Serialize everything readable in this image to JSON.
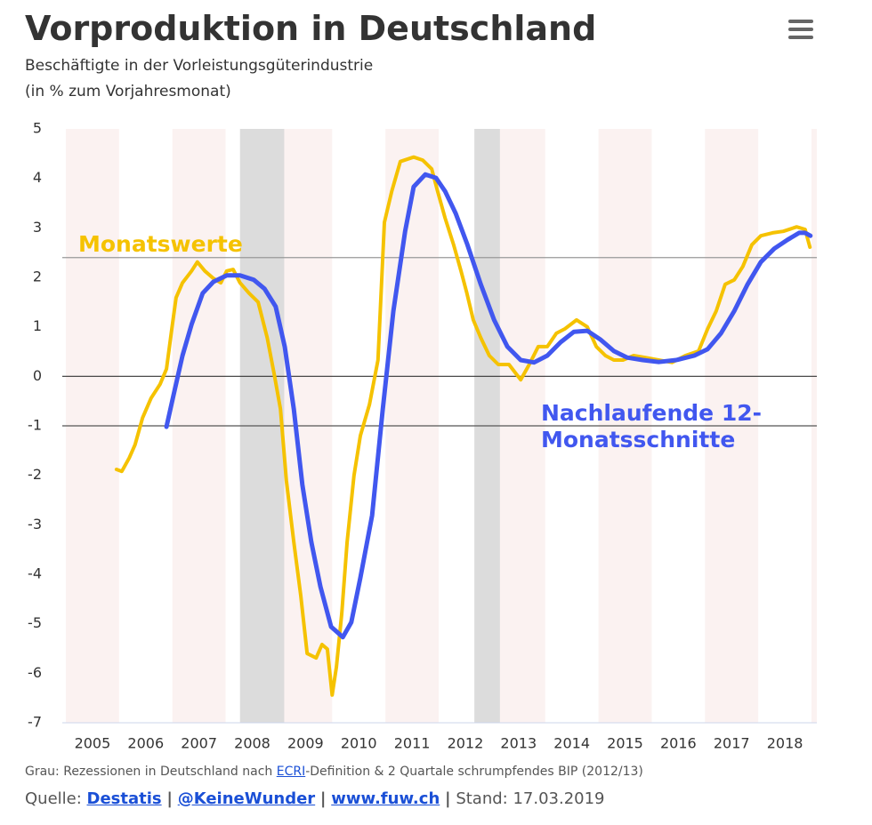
{
  "chart_data": {
    "type": "line",
    "title": "Vorproduktion in Deutschland",
    "subtitle_lines": [
      "Beschäftigte in der Vorleistungsgüterindustrie",
      "(in % zum Vorjahresmonat)"
    ],
    "xlim": [
      2005,
      2019.1
    ],
    "ylim": [
      -7,
      5
    ],
    "yticks": [
      -7,
      -6,
      -5,
      -4,
      -3,
      -2,
      -1,
      0,
      1,
      2,
      3,
      4,
      5
    ],
    "xticks": [
      {
        "value": 2005.5,
        "label": "2005"
      },
      {
        "value": 2006.5,
        "label": "2006"
      },
      {
        "value": 2007.5,
        "label": "2007"
      },
      {
        "value": 2008.5,
        "label": "2008"
      },
      {
        "value": 2009.5,
        "label": "2009"
      },
      {
        "value": 2010.5,
        "label": "2010"
      },
      {
        "value": 2011.5,
        "label": "2011"
      },
      {
        "value": 2012.5,
        "label": "2012"
      },
      {
        "value": 2013.5,
        "label": "2013"
      },
      {
        "value": 2014.5,
        "label": "2014"
      },
      {
        "value": 2015.5,
        "label": "2015"
      },
      {
        "value": 2016.5,
        "label": "2016"
      },
      {
        "value": 2017.5,
        "label": "2017"
      },
      {
        "value": 2018.5,
        "label": "2018"
      }
    ],
    "grid": false,
    "recessions": [
      [
        2008.27,
        2009.1
      ],
      [
        2012.67,
        2013.15
      ]
    ],
    "reference_lines": [
      {
        "value": 0,
        "color": "#333333"
      },
      {
        "value": -1,
        "color": "#555555"
      },
      {
        "value": 2.4,
        "color": "#999999"
      }
    ],
    "series": [
      {
        "name": "Monatswerte",
        "color": "#f5c200",
        "x": [
          2005.95,
          2006.05,
          2006.19,
          2006.3,
          2006.44,
          2006.6,
          2006.77,
          2006.89,
          2006.99,
          2007.07,
          2007.19,
          2007.36,
          2007.47,
          2007.61,
          2007.77,
          2007.91,
          2008.02,
          2008.14,
          2008.27,
          2008.44,
          2008.61,
          2008.78,
          2008.91,
          2009.03,
          2009.14,
          2009.28,
          2009.41,
          2009.53,
          2009.7,
          2009.81,
          2009.91,
          2010.0,
          2010.08,
          2010.18,
          2010.28,
          2010.41,
          2010.53,
          2010.7,
          2010.86,
          2010.98,
          2011.12,
          2011.28,
          2011.53,
          2011.7,
          2011.87,
          2011.98,
          2012.12,
          2012.28,
          2012.42,
          2012.53,
          2012.65,
          2012.79,
          2012.95,
          2013.12,
          2013.32,
          2013.54,
          2013.7,
          2013.87,
          2014.04,
          2014.21,
          2014.37,
          2014.59,
          2014.79,
          2014.96,
          2015.13,
          2015.29,
          2015.46,
          2015.66,
          2015.88,
          2016.13,
          2016.38,
          2016.63,
          2016.88,
          2017.05,
          2017.21,
          2017.38,
          2017.55,
          2017.71,
          2017.88,
          2018.05,
          2018.27,
          2018.47,
          2018.72,
          2018.88,
          2018.97
        ],
        "values": [
          -1.88,
          -1.92,
          -1.65,
          -1.38,
          -0.84,
          -0.44,
          -0.16,
          0.15,
          0.96,
          1.59,
          1.89,
          2.13,
          2.31,
          2.13,
          1.98,
          1.89,
          2.13,
          2.16,
          1.89,
          1.68,
          1.5,
          0.78,
          0.06,
          -0.66,
          -2.1,
          -3.35,
          -4.43,
          -5.6,
          -5.69,
          -5.42,
          -5.51,
          -6.44,
          -5.87,
          -4.79,
          -3.35,
          -2.01,
          -1.2,
          -0.57,
          0.33,
          3.11,
          3.74,
          4.34,
          4.43,
          4.37,
          4.19,
          3.74,
          3.2,
          2.66,
          2.13,
          1.68,
          1.14,
          0.78,
          0.42,
          0.24,
          0.24,
          -0.07,
          0.24,
          0.6,
          0.6,
          0.87,
          0.96,
          1.14,
          1.0,
          0.6,
          0.42,
          0.33,
          0.33,
          0.42,
          0.38,
          0.33,
          0.28,
          0.42,
          0.51,
          0.96,
          1.32,
          1.86,
          1.95,
          2.22,
          2.66,
          2.84,
          2.9,
          2.93,
          3.02,
          2.97,
          2.61
        ]
      },
      {
        "name": "Nachlaufende 12-Monatsschnitte",
        "color": "#4157ef",
        "x": [
          2006.89,
          2007.02,
          2007.19,
          2007.36,
          2007.57,
          2007.77,
          2008.02,
          2008.27,
          2008.53,
          2008.73,
          2008.94,
          2009.11,
          2009.28,
          2009.44,
          2009.61,
          2009.78,
          2009.98,
          2010.2,
          2010.36,
          2010.53,
          2010.75,
          2010.95,
          2011.15,
          2011.37,
          2011.53,
          2011.75,
          2011.95,
          2012.12,
          2012.32,
          2012.54,
          2012.79,
          2013.04,
          2013.29,
          2013.54,
          2013.79,
          2014.04,
          2014.29,
          2014.54,
          2014.79,
          2015.04,
          2015.29,
          2015.54,
          2015.83,
          2016.13,
          2016.46,
          2016.8,
          2017.05,
          2017.3,
          2017.55,
          2017.8,
          2018.05,
          2018.3,
          2018.55,
          2018.77,
          2018.88,
          2018.98
        ],
        "values": [
          -1.02,
          -0.39,
          0.42,
          1.05,
          1.68,
          1.91,
          2.04,
          2.04,
          1.95,
          1.77,
          1.41,
          0.6,
          -0.66,
          -2.19,
          -3.35,
          -4.25,
          -5.06,
          -5.27,
          -4.97,
          -4.07,
          -2.81,
          -0.66,
          1.32,
          2.93,
          3.83,
          4.08,
          4.01,
          3.74,
          3.29,
          2.66,
          1.86,
          1.14,
          0.6,
          0.33,
          0.28,
          0.42,
          0.69,
          0.9,
          0.92,
          0.74,
          0.51,
          0.38,
          0.33,
          0.29,
          0.33,
          0.42,
          0.55,
          0.87,
          1.32,
          1.86,
          2.31,
          2.58,
          2.76,
          2.9,
          2.9,
          2.84
        ]
      }
    ],
    "note_prefix": "Grau: Rezessionen in Deutschland nach ",
    "note_link": "ECRI",
    "note_suffix": "-Definition & 2 Quartale schrumpfendes BIP (2012/13)",
    "source_label": "Quelle:",
    "source_links": [
      "Destatis",
      "@KeineWunder",
      "www.fuw.ch"
    ],
    "separator": "|",
    "stand": "Stand: 17.03.2019"
  }
}
